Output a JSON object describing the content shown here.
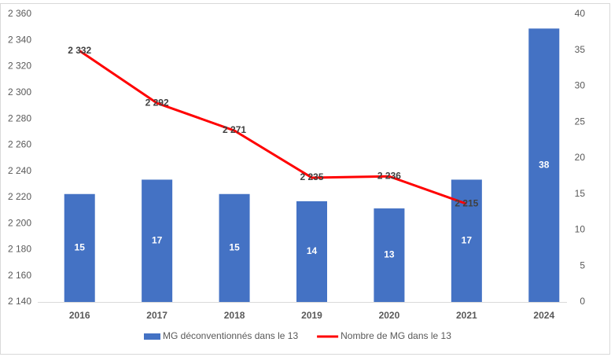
{
  "chart_data": {
    "type": "combo",
    "categories": [
      "2016",
      "2017",
      "2018",
      "2019",
      "2020",
      "2021",
      "2024"
    ],
    "series": [
      {
        "name": "MG déconventionnés dans le 13",
        "type": "bar",
        "axis": "y2",
        "color": "#4472c4",
        "values": [
          15,
          17,
          15,
          14,
          13,
          17,
          38
        ]
      },
      {
        "name": "Nombre de MG dans le 13",
        "type": "line",
        "axis": "y",
        "color": "#ff0000",
        "values": [
          2332,
          2292,
          2271,
          2235,
          2236,
          2215,
          null
        ],
        "value_labels": [
          "2 332",
          "2 292",
          "2 271",
          "2 235",
          "2 236",
          "2 215",
          null
        ]
      }
    ],
    "ylim": [
      2140,
      2360
    ],
    "yticks": [
      {
        "value": 2140,
        "label": "2 140"
      },
      {
        "value": 2160,
        "label": "2 160"
      },
      {
        "value": 2180,
        "label": "2 180"
      },
      {
        "value": 2200,
        "label": "2 200"
      },
      {
        "value": 2220,
        "label": "2 220"
      },
      {
        "value": 2240,
        "label": "2 240"
      },
      {
        "value": 2260,
        "label": "2 260"
      },
      {
        "value": 2280,
        "label": "2 280"
      },
      {
        "value": 2300,
        "label": "2 300"
      },
      {
        "value": 2320,
        "label": "2 320"
      },
      {
        "value": 2340,
        "label": "2 340"
      },
      {
        "value": 2360,
        "label": "2 360"
      }
    ],
    "y2lim": [
      0,
      40
    ],
    "y2ticks": [
      0,
      5,
      10,
      15,
      20,
      25,
      30,
      35,
      40
    ],
    "grid": false,
    "legend": "bottom"
  }
}
